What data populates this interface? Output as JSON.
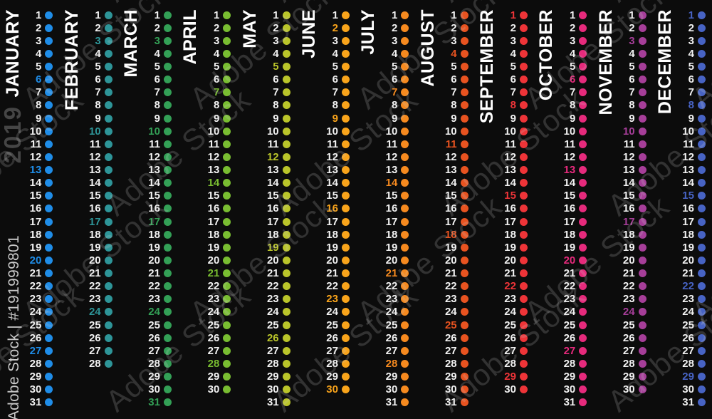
{
  "year_watermark": "2019",
  "stock_watermark": {
    "diagonal": "Adobe Stock",
    "credit": "Adobe Stock | #191999801"
  },
  "calendar": {
    "background": "#0c0c0c",
    "day_text_color": "#f2f2f2",
    "month_label_color": "#ffffff",
    "highlight_rule": "Sundays shown in month color",
    "months": [
      {
        "name": "JANUARY",
        "days": 31,
        "color": "#1f8de8",
        "sundays": [
          6,
          13,
          20,
          27
        ]
      },
      {
        "name": "FEBRUARY",
        "days": 28,
        "color": "#2e9598",
        "sundays": [
          3,
          10,
          17,
          24
        ]
      },
      {
        "name": "MARCH",
        "days": 31,
        "color": "#33a056",
        "sundays": [
          3,
          10,
          17,
          24,
          31
        ]
      },
      {
        "name": "APRIL",
        "days": 30,
        "color": "#79bd31",
        "sundays": [
          7,
          14,
          21,
          28
        ]
      },
      {
        "name": "MAY",
        "days": 31,
        "color": "#bac52a",
        "sundays": [
          5,
          12,
          19,
          26
        ]
      },
      {
        "name": "JUNE",
        "days": 30,
        "color": "#f9a41b",
        "sundays": [
          2,
          9,
          16,
          23,
          30
        ]
      },
      {
        "name": "JULY",
        "days": 31,
        "color": "#f68a1f",
        "sundays": [
          7,
          14,
          21,
          28
        ]
      },
      {
        "name": "AUGUST",
        "days": 31,
        "color": "#e85320",
        "sundays": [
          4,
          11,
          18,
          25
        ]
      },
      {
        "name": "SEPTEMBER",
        "days": 30,
        "color": "#ee3438",
        "sundays": [
          1,
          8,
          15,
          22,
          29
        ]
      },
      {
        "name": "OCTOBER",
        "days": 31,
        "color": "#e62a7c",
        "sundays": [
          6,
          13,
          20,
          27
        ]
      },
      {
        "name": "NOVEMBER",
        "days": 30,
        "color": "#a63e99",
        "sundays": [
          3,
          10,
          17,
          24
        ]
      },
      {
        "name": "DECEMBER",
        "days": 31,
        "color": "#4763c4",
        "sundays": [
          1,
          8,
          15,
          22,
          29
        ]
      }
    ]
  }
}
